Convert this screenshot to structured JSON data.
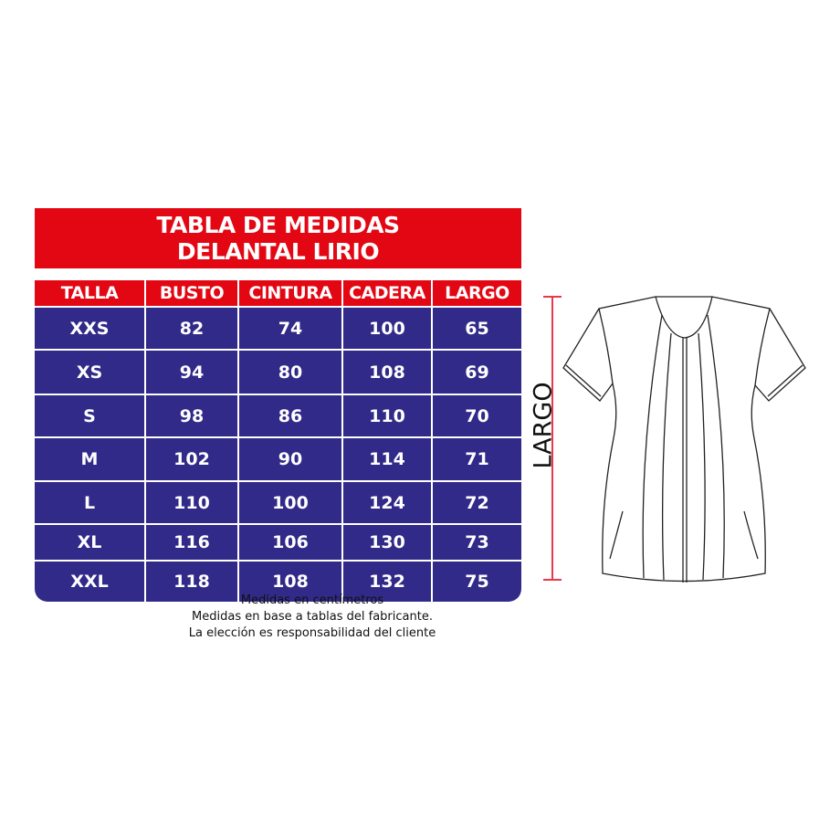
{
  "title": {
    "line1": "TABLA DE MEDIDAS",
    "line2": "DELANTAL LIRIO"
  },
  "table": {
    "headers": [
      "TALLA",
      "BUSTO",
      "CINTURA",
      "CADERA",
      "LARGO"
    ],
    "rows": [
      [
        "XXS",
        "82",
        "74",
        "100",
        "65"
      ],
      [
        "XS",
        "94",
        "80",
        "108",
        "69"
      ],
      [
        "S",
        "98",
        "86",
        "110",
        "70"
      ],
      [
        "M",
        "102",
        "90",
        "114",
        "71"
      ],
      [
        "L",
        "110",
        "100",
        "124",
        "72"
      ],
      [
        "XL",
        "116",
        "106",
        "130",
        "73"
      ],
      [
        "XXL",
        "118",
        "108",
        "132",
        "75"
      ]
    ]
  },
  "notes": [
    "Medidas en centímetros",
    "Medidas en base a tablas del fabricante.",
    "La elección es responsabilidad del cliente"
  ],
  "diagram": {
    "measure_label": "LARGO"
  },
  "colors": {
    "header_red": "#e30613",
    "body_blue": "#312a88",
    "ruler_red": "#e8394a"
  }
}
